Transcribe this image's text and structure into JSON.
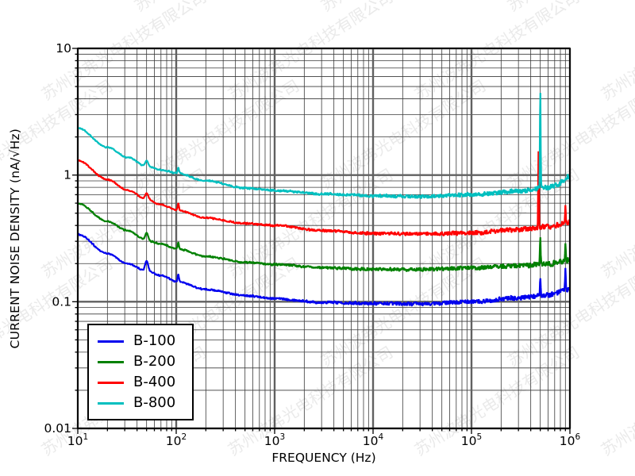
{
  "watermark": {
    "text": "苏州波弗光电科技有限公司",
    "color": "#d9d9d9",
    "opacity": 0.55,
    "rotation_deg": -32
  },
  "chart_data": {
    "type": "line",
    "title": "",
    "xlabel": "FREQUENCY (Hz)",
    "ylabel": "CURRENT NOISE DENSITY (nA/√Hz)",
    "x_scale": "log",
    "y_scale": "log",
    "xlim": [
      10,
      1000000
    ],
    "ylim": [
      0.01,
      10
    ],
    "grid": {
      "major": true,
      "minor": true
    },
    "x_ticks": [
      {
        "value": 10,
        "base": "10",
        "exp": "1"
      },
      {
        "value": 100,
        "base": "10",
        "exp": "2"
      },
      {
        "value": 1000,
        "base": "10",
        "exp": "3"
      },
      {
        "value": 10000,
        "base": "10",
        "exp": "4"
      },
      {
        "value": 100000,
        "base": "10",
        "exp": "5"
      },
      {
        "value": 1000000,
        "base": "10",
        "exp": "6"
      }
    ],
    "y_ticks": [
      {
        "value": 10,
        "label": "10"
      },
      {
        "value": 1,
        "label": "1"
      },
      {
        "value": 0.1,
        "label": "0.1"
      },
      {
        "value": 0.01,
        "label": "0.01"
      }
    ],
    "legend": {
      "position": "lower-left",
      "entries": [
        "B-100",
        "B-200",
        "B-400",
        "B-800"
      ]
    },
    "series": [
      {
        "name": "B-100",
        "color": "#0000ee",
        "points_hz_nA": [
          [
            10,
            0.34
          ],
          [
            20,
            0.24
          ],
          [
            32,
            0.2
          ],
          [
            50,
            0.175
          ],
          [
            70,
            0.161
          ],
          [
            100,
            0.145
          ],
          [
            200,
            0.125
          ],
          [
            500,
            0.112
          ],
          [
            1000,
            0.106
          ],
          [
            3000,
            0.099
          ],
          [
            10000,
            0.097
          ],
          [
            30000,
            0.096
          ],
          [
            100000,
            0.1
          ],
          [
            300000,
            0.107
          ],
          [
            600000,
            0.113
          ],
          [
            1000000,
            0.124
          ]
        ],
        "spikes_hz_nA_w": [
          [
            50,
            0.21,
            0.015
          ],
          [
            105,
            0.165,
            0.006
          ],
          [
            500000,
            0.155,
            0.0035
          ],
          [
            900000,
            0.185,
            0.0035
          ]
        ]
      },
      {
        "name": "B-200",
        "color": "#008000",
        "points_hz_nA": [
          [
            10,
            0.6
          ],
          [
            20,
            0.43
          ],
          [
            32,
            0.365
          ],
          [
            50,
            0.305
          ],
          [
            70,
            0.285
          ],
          [
            100,
            0.263
          ],
          [
            200,
            0.228
          ],
          [
            500,
            0.205
          ],
          [
            1000,
            0.197
          ],
          [
            3000,
            0.186
          ],
          [
            10000,
            0.181
          ],
          [
            30000,
            0.18
          ],
          [
            100000,
            0.185
          ],
          [
            300000,
            0.192
          ],
          [
            600000,
            0.199
          ],
          [
            1000000,
            0.212
          ]
        ],
        "spikes_hz_nA_w": [
          [
            50,
            0.35,
            0.015
          ],
          [
            105,
            0.295,
            0.006
          ],
          [
            500000,
            0.33,
            0.0035
          ],
          [
            900000,
            0.29,
            0.0035
          ]
        ]
      },
      {
        "name": "B-400",
        "color": "#ff0000",
        "points_hz_nA": [
          [
            10,
            1.3
          ],
          [
            20,
            0.92
          ],
          [
            32,
            0.76
          ],
          [
            50,
            0.645
          ],
          [
            70,
            0.585
          ],
          [
            100,
            0.53
          ],
          [
            200,
            0.46
          ],
          [
            500,
            0.415
          ],
          [
            1000,
            0.4
          ],
          [
            3000,
            0.365
          ],
          [
            10000,
            0.346
          ],
          [
            30000,
            0.344
          ],
          [
            100000,
            0.35
          ],
          [
            300000,
            0.372
          ],
          [
            600000,
            0.39
          ],
          [
            1000000,
            0.425
          ]
        ],
        "spikes_hz_nA_w": [
          [
            50,
            0.72,
            0.015
          ],
          [
            105,
            0.6,
            0.006
          ],
          [
            480000,
            1.56,
            0.0035
          ],
          [
            900000,
            0.58,
            0.0035
          ]
        ]
      },
      {
        "name": "B-800",
        "color": "#00bfbf",
        "points_hz_nA": [
          [
            10,
            2.35
          ],
          [
            20,
            1.66
          ],
          [
            32,
            1.38
          ],
          [
            50,
            1.17
          ],
          [
            70,
            1.1
          ],
          [
            100,
            1.04
          ],
          [
            200,
            0.9
          ],
          [
            500,
            0.79
          ],
          [
            1000,
            0.755
          ],
          [
            3000,
            0.71
          ],
          [
            10000,
            0.685
          ],
          [
            30000,
            0.678
          ],
          [
            100000,
            0.7
          ],
          [
            300000,
            0.745
          ],
          [
            600000,
            0.8
          ],
          [
            1000000,
            0.92
          ]
        ],
        "spikes_hz_nA_w": [
          [
            50,
            1.3,
            0.015
          ],
          [
            105,
            1.15,
            0.006
          ],
          [
            500000,
            4.8,
            0.0035
          ],
          [
            950000,
            1.02,
            0.0035
          ]
        ]
      }
    ]
  }
}
